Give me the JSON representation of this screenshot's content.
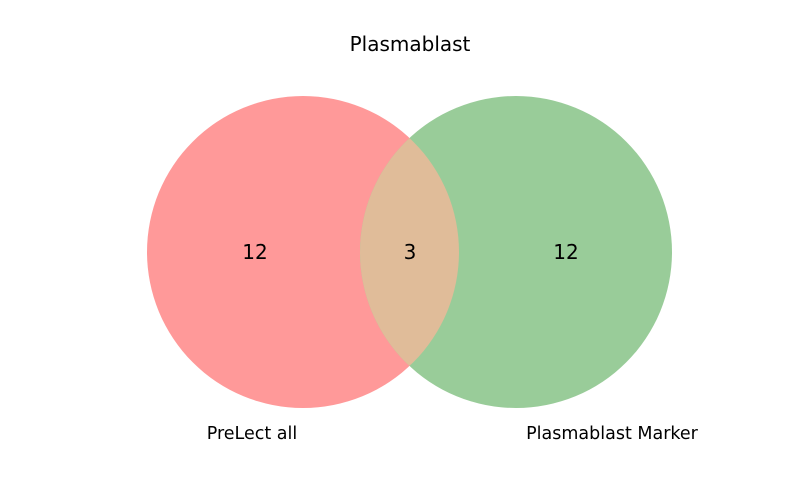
{
  "title": "Plasmablast",
  "colors": {
    "set_a": "#ff9999",
    "set_b": "#99cc99",
    "overlap": "#e0bc99"
  },
  "sets": {
    "a": {
      "label": "PreLect all"
    },
    "b": {
      "label": "Plasmablast Marker"
    }
  },
  "regions": {
    "only_a": "12",
    "both": "3",
    "only_b": "12"
  }
}
